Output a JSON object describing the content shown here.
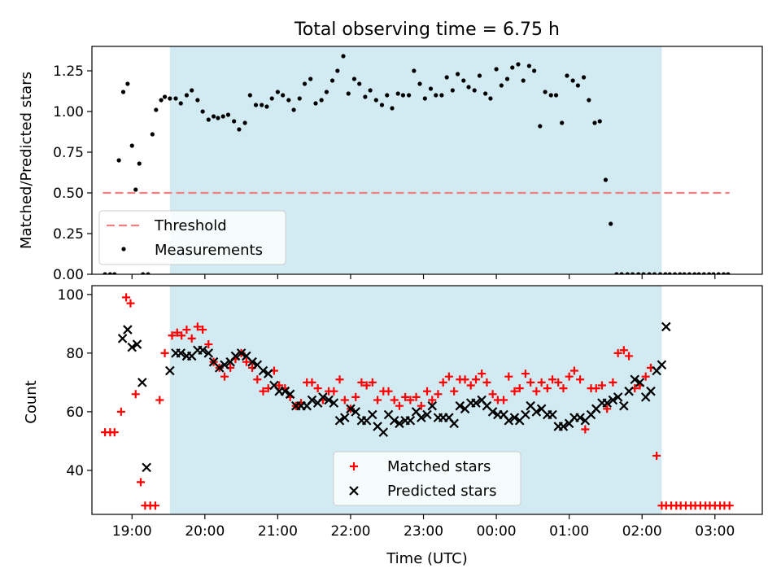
{
  "chart_data": {
    "type": "scatter",
    "title": "Total observing time = 6.75 h",
    "xlabel": "Time (UTC)",
    "x_unit": "hours since 00:00 UTC of the first night (values >24 continue past midnight)",
    "xlim": [
      18.45,
      27.65
    ],
    "xticks": [
      19,
      20,
      21,
      22,
      23,
      24,
      25,
      26,
      27
    ],
    "xtick_labels": [
      "19:00",
      "20:00",
      "21:00",
      "22:00",
      "23:00",
      "00:00",
      "01:00",
      "02:00",
      "03:00"
    ],
    "shaded_span": [
      19.52,
      26.27
    ],
    "shade_color": "#add8e6",
    "panels": [
      {
        "ylabel": "Matched/Predicted stars",
        "ylim": [
          0,
          1.4
        ],
        "yticks": [
          0,
          0.25,
          0.5,
          0.75,
          1.0,
          1.25
        ],
        "ytick_labels": [
          "0.00",
          "0.25",
          "0.50",
          "0.75",
          "1.00",
          "1.25"
        ],
        "legend": {
          "position": "lower-left",
          "entries": [
            "Threshold",
            "Measurements"
          ]
        },
        "threshold": {
          "name": "Threshold",
          "value": 0.5,
          "x": [
            18.6,
            27.2
          ],
          "color": "#f08080"
        },
        "measurements": {
          "name": "Measurements",
          "color": "#000000",
          "x": [
            18.63,
            18.7,
            18.76,
            18.82,
            18.88,
            18.94,
            19.0,
            19.05,
            19.1,
            19.15,
            19.22,
            19.28,
            19.33,
            19.4,
            19.45,
            19.52,
            19.6,
            19.67,
            19.75,
            19.82,
            19.9,
            19.97,
            20.05,
            20.12,
            20.18,
            20.25,
            20.32,
            20.4,
            20.47,
            20.55,
            20.62,
            20.7,
            20.78,
            20.85,
            20.92,
            21.0,
            21.07,
            21.15,
            21.22,
            21.3,
            21.37,
            21.45,
            21.52,
            21.6,
            21.67,
            21.75,
            21.82,
            21.9,
            21.97,
            22.05,
            22.12,
            22.2,
            22.27,
            22.35,
            22.43,
            22.5,
            22.57,
            22.65,
            22.72,
            22.8,
            22.87,
            22.95,
            23.02,
            23.1,
            23.17,
            23.25,
            23.32,
            23.4,
            23.47,
            23.55,
            23.62,
            23.7,
            23.77,
            23.85,
            23.92,
            24.0,
            24.07,
            24.15,
            24.22,
            24.3,
            24.37,
            24.45,
            24.52,
            24.6,
            24.67,
            24.75,
            24.82,
            24.9,
            24.97,
            25.05,
            25.12,
            25.2,
            25.27,
            25.35,
            25.42,
            25.5,
            25.57,
            25.65,
            25.72,
            25.8,
            25.87,
            25.95,
            26.02,
            26.1,
            26.17,
            26.25,
            26.32,
            26.38,
            26.45,
            26.52,
            26.58,
            26.65,
            26.72,
            26.78,
            26.85,
            26.92,
            26.98,
            27.05,
            27.12,
            27.18
          ],
          "y": [
            0.0,
            0.0,
            0.0,
            0.7,
            1.12,
            1.17,
            0.79,
            0.52,
            0.68,
            0.0,
            0.0,
            0.86,
            1.01,
            1.07,
            1.09,
            1.08,
            1.08,
            1.05,
            1.1,
            1.13,
            1.07,
            1.0,
            0.95,
            0.97,
            0.96,
            0.97,
            0.98,
            0.94,
            0.89,
            0.93,
            1.1,
            1.04,
            1.04,
            1.03,
            1.08,
            1.12,
            1.1,
            1.07,
            1.01,
            1.08,
            1.17,
            1.2,
            1.05,
            1.07,
            1.12,
            1.19,
            1.25,
            1.34,
            1.11,
            1.2,
            1.17,
            1.09,
            1.13,
            1.07,
            1.04,
            1.1,
            1.02,
            1.11,
            1.1,
            1.1,
            1.25,
            1.17,
            1.08,
            1.14,
            1.1,
            1.1,
            1.21,
            1.13,
            1.23,
            1.19,
            1.15,
            1.13,
            1.22,
            1.11,
            1.08,
            1.26,
            1.16,
            1.2,
            1.27,
            1.29,
            1.19,
            1.28,
            1.25,
            0.91,
            1.12,
            1.1,
            1.1,
            0.93,
            1.22,
            1.19,
            1.16,
            1.21,
            1.07,
            0.93,
            0.94,
            0.58,
            0.31,
            0.0,
            0.0,
            0.0,
            0.0,
            0.0,
            0.0,
            0.0,
            0.0,
            0.0,
            0.0,
            0.0,
            0.0,
            0.0,
            0.0,
            0.0,
            0.0,
            0.0,
            0.0,
            0.0,
            0.0,
            0.0,
            0.0,
            0.0
          ]
        }
      },
      {
        "ylabel": "Count",
        "ylim": [
          25,
          103
        ],
        "yticks": [
          40,
          60,
          80,
          100
        ],
        "ytick_labels": [
          "40",
          "60",
          "80",
          "100"
        ],
        "legend": {
          "position": "lower-center",
          "entries": [
            "Matched stars",
            "Predicted stars"
          ]
        },
        "series": [
          {
            "name": "Matched stars",
            "marker": "plus",
            "color": "#ff0000",
            "x": [
              18.63,
              18.7,
              18.76,
              18.85,
              18.92,
              18.98,
              19.05,
              19.12,
              19.18,
              19.25,
              19.32,
              19.38,
              19.45,
              19.55,
              19.62,
              19.68,
              19.75,
              19.82,
              19.9,
              19.97,
              20.05,
              20.12,
              20.2,
              20.27,
              20.35,
              20.42,
              20.5,
              20.57,
              20.65,
              20.72,
              20.8,
              20.87,
              20.95,
              21.02,
              21.1,
              21.17,
              21.25,
              21.32,
              21.4,
              21.47,
              21.55,
              21.62,
              21.7,
              21.77,
              21.85,
              21.92,
              22.0,
              22.07,
              22.15,
              22.22,
              22.3,
              22.37,
              22.45,
              22.52,
              22.6,
              22.67,
              22.75,
              22.82,
              22.9,
              22.97,
              23.05,
              23.12,
              23.2,
              23.27,
              23.35,
              23.42,
              23.5,
              23.57,
              23.65,
              23.72,
              23.8,
              23.87,
              23.95,
              24.02,
              24.1,
              24.17,
              24.25,
              24.32,
              24.4,
              24.47,
              24.55,
              24.62,
              24.7,
              24.77,
              24.85,
              24.92,
              25.0,
              25.07,
              25.15,
              25.22,
              25.3,
              25.37,
              25.45,
              25.52,
              25.6,
              25.67,
              25.75,
              25.82,
              25.9,
              25.97,
              26.05,
              26.12,
              26.2,
              26.27,
              26.33,
              26.4,
              26.47,
              26.53,
              26.6,
              26.67,
              26.73,
              26.8,
              26.87,
              26.93,
              27.0,
              27.07,
              27.13,
              27.2
            ],
            "y": [
              53,
              53,
              53,
              60,
              99,
              97,
              66,
              36,
              28,
              28,
              28,
              64,
              80,
              86,
              87,
              86,
              88,
              85,
              89,
              88,
              83,
              77,
              75,
              72,
              75,
              78,
              80,
              77,
              75,
              71,
              67,
              68,
              74,
              69,
              68,
              65,
              62,
              63,
              70,
              70,
              68,
              64,
              67,
              67,
              71,
              64,
              61,
              65,
              70,
              69,
              70,
              64,
              67,
              67,
              64,
              62,
              65,
              64,
              65,
              62,
              67,
              64,
              66,
              70,
              72,
              67,
              71,
              71,
              69,
              71,
              73,
              70,
              66,
              64,
              64,
              72,
              67,
              68,
              73,
              70,
              67,
              70,
              68,
              71,
              70,
              68,
              72,
              74,
              71,
              54,
              68,
              68,
              69,
              61,
              70,
              80,
              81,
              79,
              68,
              69,
              72,
              75,
              45,
              28,
              28,
              28,
              28,
              28,
              28,
              28,
              28,
              28,
              28,
              28,
              28,
              28,
              28,
              28
            ]
          },
          {
            "name": "Predicted stars",
            "marker": "x",
            "color": "#000000",
            "x": [
              18.87,
              18.94,
              19.0,
              19.07,
              19.14,
              19.2,
              19.52,
              19.6,
              19.67,
              19.75,
              19.82,
              19.9,
              19.97,
              20.05,
              20.12,
              20.2,
              20.27,
              20.35,
              20.42,
              20.5,
              20.57,
              20.65,
              20.72,
              20.8,
              20.87,
              20.95,
              21.02,
              21.1,
              21.17,
              21.25,
              21.32,
              21.4,
              21.47,
              21.55,
              21.62,
              21.7,
              21.77,
              21.85,
              21.92,
              22.0,
              22.07,
              22.15,
              22.22,
              22.3,
              22.37,
              22.45,
              22.52,
              22.6,
              22.67,
              22.75,
              22.82,
              22.9,
              22.97,
              23.05,
              23.12,
              23.2,
              23.27,
              23.35,
              23.42,
              23.5,
              23.57,
              23.65,
              23.72,
              23.8,
              23.87,
              23.95,
              24.02,
              24.1,
              24.17,
              24.25,
              24.32,
              24.4,
              24.47,
              24.55,
              24.62,
              24.7,
              24.77,
              24.85,
              24.92,
              25.0,
              25.07,
              25.15,
              25.22,
              25.3,
              25.37,
              25.45,
              25.52,
              25.6,
              25.67,
              25.75,
              25.82,
              25.9,
              25.97,
              26.05,
              26.12,
              26.2,
              26.27,
              26.33
            ],
            "y": [
              85,
              88,
              82,
              83,
              70,
              41,
              74,
              80,
              80,
              79,
              79,
              81,
              81,
              80,
              77,
              75,
              76,
              77,
              79,
              80,
              79,
              77,
              76,
              74,
              73,
              69,
              67,
              67,
              66,
              62,
              62,
              62,
              64,
              63,
              65,
              64,
              63,
              57,
              58,
              61,
              60,
              57,
              57,
              59,
              55,
              53,
              59,
              57,
              56,
              57,
              57,
              60,
              58,
              59,
              62,
              58,
              58,
              58,
              56,
              62,
              61,
              63,
              63,
              64,
              62,
              60,
              59,
              59,
              57,
              58,
              57,
              59,
              62,
              60,
              61,
              59,
              59,
              55,
              55,
              56,
              58,
              58,
              57,
              59,
              61,
              63,
              63,
              64,
              65,
              62,
              67,
              71,
              70,
              65,
              67,
              74,
              76,
              89
            ]
          }
        ]
      }
    ]
  }
}
